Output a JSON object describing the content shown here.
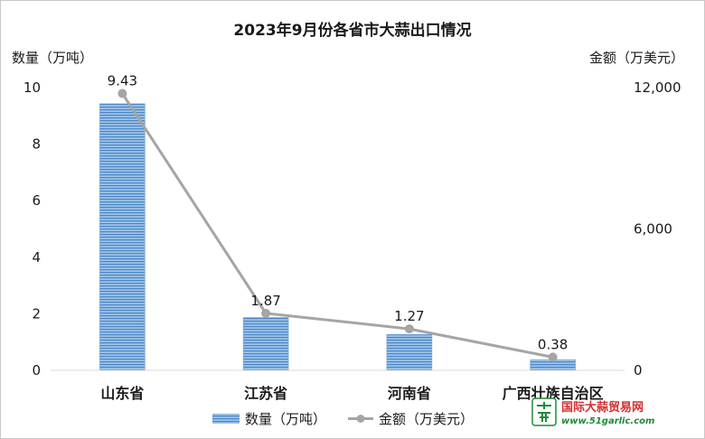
{
  "chart_data": {
    "type": "bar",
    "title": "2023年9月份各省市大蒜出口情况",
    "ylabel_left": "数量（万吨）",
    "ylabel_right": "金额（万美元）",
    "categories": [
      "山东省",
      "江苏省",
      "河南省",
      "广西壮族自治区"
    ],
    "ylim_left": [
      0,
      10
    ],
    "yticks_left": [
      "0",
      "2",
      "4",
      "6",
      "8",
      "10"
    ],
    "ylim_right": [
      0,
      12000
    ],
    "yticks_right": [
      "0",
      "6,000",
      "12,000"
    ],
    "series": [
      {
        "name": "数量（万吨）",
        "type": "bar",
        "axis": "left",
        "values": [
          9.43,
          1.87,
          1.27,
          0.38
        ],
        "labels": [
          "9.43",
          "1.87",
          "1.27",
          "0.38"
        ],
        "color": "#5b9bd5"
      },
      {
        "name": "金额（万美元）",
        "type": "line",
        "axis": "right",
        "values": [
          11750,
          2420,
          1760,
          560
        ],
        "color": "#a5a5a5"
      }
    ],
    "legend_position": "bottom",
    "grid": false
  },
  "watermark": {
    "name": "国际大蒜贸易网",
    "url": "www.51garlic.com",
    "colors": {
      "red": "#d32f2f",
      "green": "#1f8a3a"
    }
  }
}
